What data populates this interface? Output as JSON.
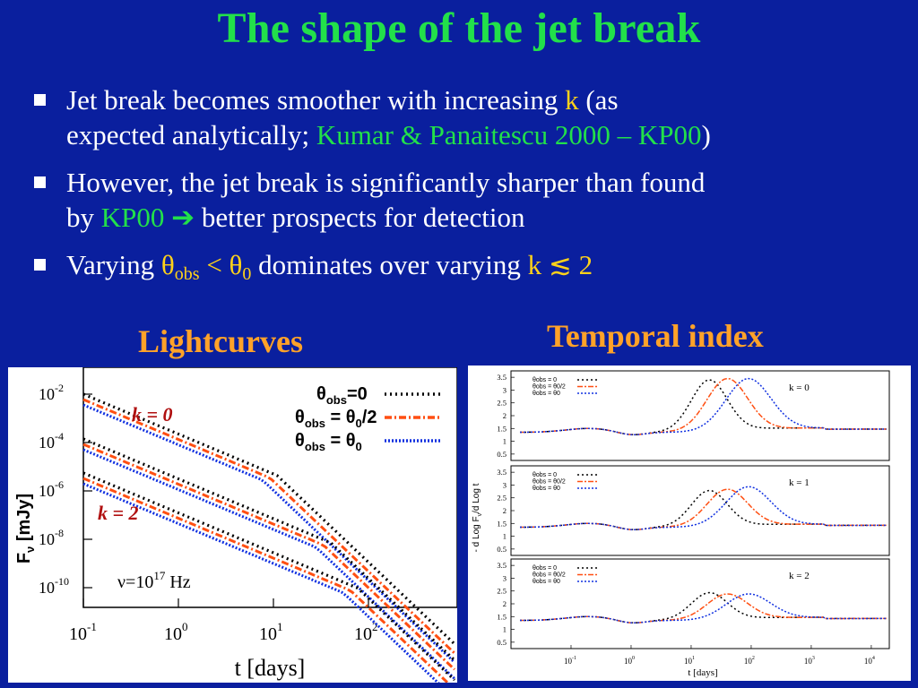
{
  "slide": {
    "title": "The shape of the jet break",
    "bullets": [
      {
        "b1_pre": "Jet break becomes smoother with increasing ",
        "b1_k": "k",
        "b1_mid": " (as",
        "b1_line2_pre": "expected analytically; ",
        "b1_ref": "Kumar & Panaitescu 2000 – KP00",
        "b1_close": ")"
      }
    ],
    "b2_pre": "However, the jet break is significantly sharper than found",
    "b2_by": "by ",
    "b2_ref": "KP00",
    "b2_arrow": "➔",
    "b2_post": " better prospects for detection",
    "b3_pre": "Varying ",
    "b3_theta": "θ",
    "b3_obs": "obs",
    "b3_lt": " < θ",
    "b3_zero": "0",
    "b3_mid": " dominates over varying ",
    "b3_k": "k ≲ 2",
    "left_heading": "Lightcurves",
    "right_heading": "Temporal index"
  },
  "lightcurves": {
    "ylabel": "F",
    "ylabel_sub": "ν",
    "ylabel_unit": " [mJy]",
    "xlabel": "t [days]",
    "k0_label": "k = 0",
    "k2_label": "k = 2",
    "freq_label": "ν=10",
    "freq_exp": "17",
    "freq_unit": " Hz",
    "legend": [
      {
        "prefix": "θ",
        "sub": "obs",
        "suffix": "=0",
        "color": "#000000",
        "style": "dots"
      },
      {
        "prefix": "θ",
        "sub": "obs",
        "suffix": " = θ",
        "sub2": "0",
        "tail": "/2",
        "color": "#ff4f12",
        "style": "dashdot"
      },
      {
        "prefix": "θ",
        "sub": "obs",
        "suffix": " = θ",
        "sub2": "0",
        "tail": "",
        "color": "#1030e0",
        "style": "dotted"
      }
    ],
    "ytick_base": "10",
    "ytick_exps": [
      "-2",
      "-4",
      "-6",
      "-8",
      "-10"
    ],
    "xtick_base": "10",
    "xtick_exps": [
      "-1",
      "0",
      "1",
      "2"
    ]
  },
  "temporal": {
    "ylabel": "- d Log F",
    "ylabel_sub": "ν",
    "ylabel_tail": "/d Log t",
    "xlabel": "t [days]",
    "yticks": [
      "3.5",
      "3",
      "2.5",
      "2",
      "1.5",
      "1",
      "0.5"
    ],
    "xtick_base": "10",
    "xtick_exps": [
      "-1",
      "0",
      "1",
      "2",
      "3",
      "4"
    ],
    "panels": [
      {
        "label": "k = 0"
      },
      {
        "label": "k = 1"
      },
      {
        "label": "k = 2"
      }
    ],
    "legend_lines": [
      "θobs = 0",
      "θobs = θ0/2",
      "θobs = θ0"
    ]
  },
  "colors": {
    "background": "#0a1f9e",
    "title": "#22e04a",
    "highlight": "#ffd21a",
    "heading": "#ffa229",
    "series_black": "#000000",
    "series_orange": "#ff4f12",
    "series_blue": "#1030e0",
    "label_red": "#b01010"
  }
}
